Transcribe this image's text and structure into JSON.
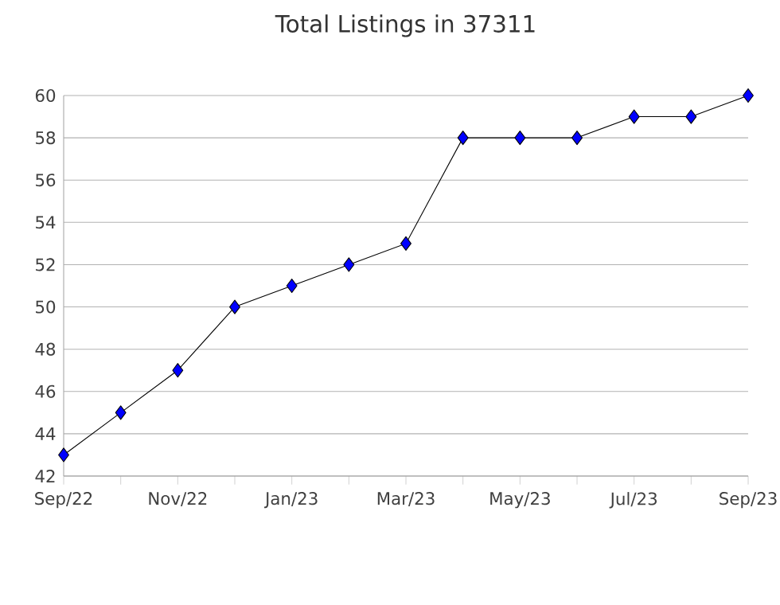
{
  "chart_data": {
    "type": "line",
    "title": "Total Listings in 37311",
    "categories": [
      "Sep/22",
      null,
      "Nov/22",
      null,
      "Jan/23",
      null,
      "Mar/23",
      null,
      "May/23",
      null,
      "Jul/23",
      null,
      "Sep/23"
    ],
    "series": [
      {
        "color": "#0000ff",
        "values": [
          43,
          45,
          47,
          50,
          51,
          52,
          53,
          58,
          58,
          58,
          59,
          59,
          60
        ]
      }
    ],
    "ylim": [
      42,
      60
    ],
    "yticks": [
      42,
      44,
      46,
      48,
      50,
      52,
      54,
      56,
      58,
      60
    ],
    "grid": "y",
    "marker": "diamond",
    "line_style": "solid"
  }
}
